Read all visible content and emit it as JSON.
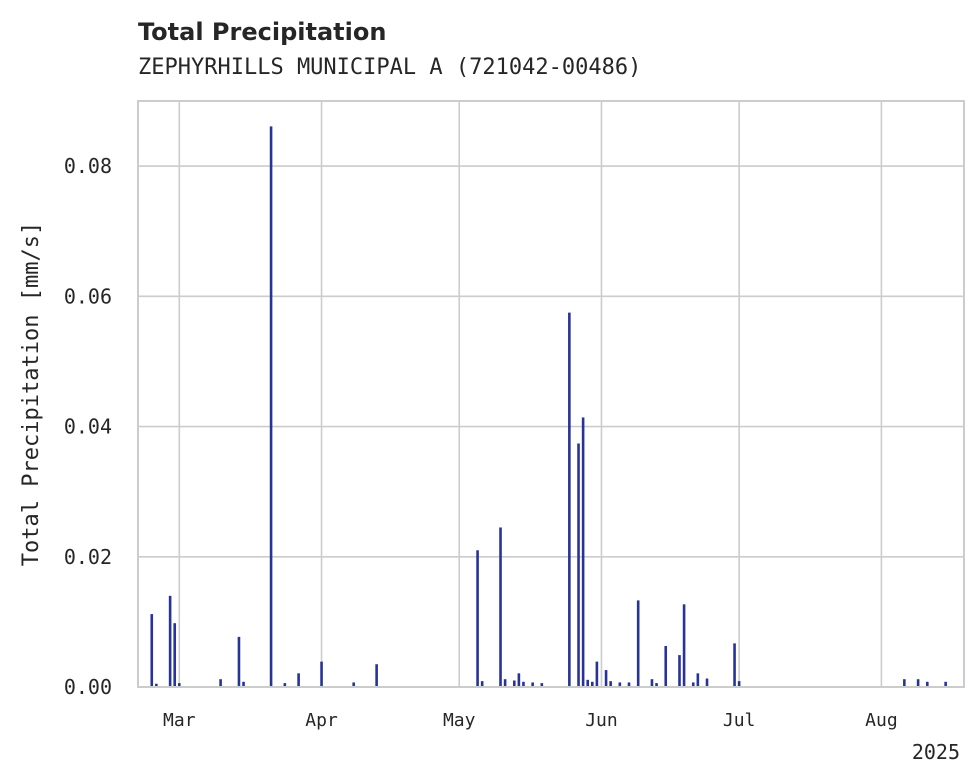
{
  "chart_data": {
    "type": "bar",
    "title": "Total Precipitation",
    "subtitle": "ZEPHYRHILLS MUNICIPAL A (721042-00486)",
    "xlabel": "",
    "ylabel": "Total Precipitation [mm/s]",
    "year_label": "2025",
    "xlim": [
      "2025-02-20",
      "2025-08-19"
    ],
    "ylim": [
      0,
      0.09
    ],
    "yticks": [
      0.0,
      0.02,
      0.04,
      0.06,
      0.08
    ],
    "ytick_labels": [
      "0.00",
      "0.02",
      "0.04",
      "0.06",
      "0.08"
    ],
    "xticks": [
      "2025-03-01",
      "2025-04-01",
      "2025-05-01",
      "2025-06-01",
      "2025-07-01",
      "2025-08-01"
    ],
    "xtick_labels": [
      "Mar",
      "Apr",
      "May",
      "Jun",
      "Jul",
      "Aug"
    ],
    "grid": true,
    "color": "#28339a",
    "series": [
      {
        "x": [
          "2025-02-23",
          "2025-02-24",
          "2025-02-27",
          "2025-02-28",
          "2025-03-01",
          "2025-03-10",
          "2025-03-14",
          "2025-03-15",
          "2025-03-21",
          "2025-03-24",
          "2025-03-27",
          "2025-04-01",
          "2025-04-08",
          "2025-04-13",
          "2025-05-05",
          "2025-05-06",
          "2025-05-10",
          "2025-05-11",
          "2025-05-13",
          "2025-05-14",
          "2025-05-15",
          "2025-05-17",
          "2025-05-19",
          "2025-05-25",
          "2025-05-27",
          "2025-05-28",
          "2025-05-29",
          "2025-05-30",
          "2025-05-31",
          "2025-06-02",
          "2025-06-03",
          "2025-06-05",
          "2025-06-07",
          "2025-06-09",
          "2025-06-12",
          "2025-06-13",
          "2025-06-15",
          "2025-06-18",
          "2025-06-19",
          "2025-06-21",
          "2025-06-22",
          "2025-06-24",
          "2025-06-30",
          "2025-07-01",
          "2025-08-06",
          "2025-08-09",
          "2025-08-11",
          "2025-08-15"
        ],
        "values": [
          0.0112,
          0.0005,
          0.014,
          0.0098,
          0.0006,
          0.0012,
          0.0077,
          0.0008,
          0.0861,
          0.0006,
          0.0021,
          0.0039,
          0.0007,
          0.0035,
          0.021,
          0.0009,
          0.0245,
          0.0012,
          0.001,
          0.0021,
          0.0008,
          0.0007,
          0.0006,
          0.0575,
          0.0374,
          0.0414,
          0.0011,
          0.0008,
          0.0039,
          0.0026,
          0.0009,
          0.0007,
          0.0007,
          0.0133,
          0.0012,
          0.0006,
          0.0063,
          0.0049,
          0.0127,
          0.0007,
          0.0021,
          0.0013,
          0.0067,
          0.0009,
          0.0012,
          0.0012,
          0.0008,
          0.0008
        ]
      }
    ]
  }
}
